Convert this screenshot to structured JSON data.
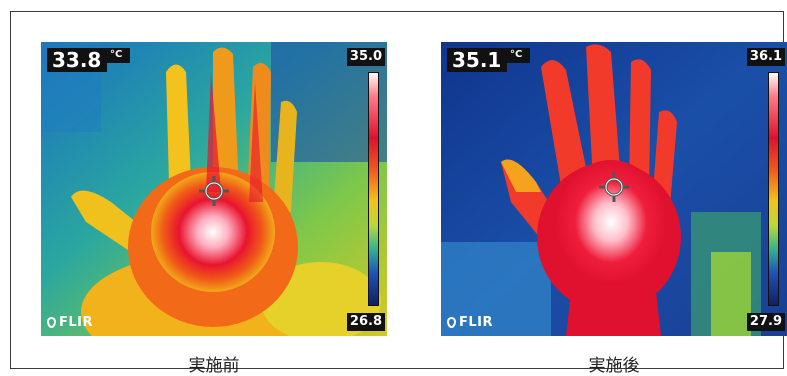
{
  "images": [
    {
      "caption": "実施前",
      "temperature": "33.8",
      "unit": "°C",
      "scale_max": "35.0",
      "scale_min": "26.8",
      "brand": "FLIR",
      "brand_icon": "flir-flame-icon"
    },
    {
      "caption": "実施後",
      "temperature": "35.1",
      "unit": "°C",
      "scale_max": "36.1",
      "scale_min": "27.9",
      "brand": "FLIR",
      "brand_icon": "flir-flame-icon"
    }
  ],
  "colors": {
    "frame_border": "#3a3a3a",
    "cold": "#13205e",
    "cool": "#1f53b8",
    "mid": "#f0c41a",
    "warm": "#e0102f",
    "hot": "#ffffff"
  }
}
